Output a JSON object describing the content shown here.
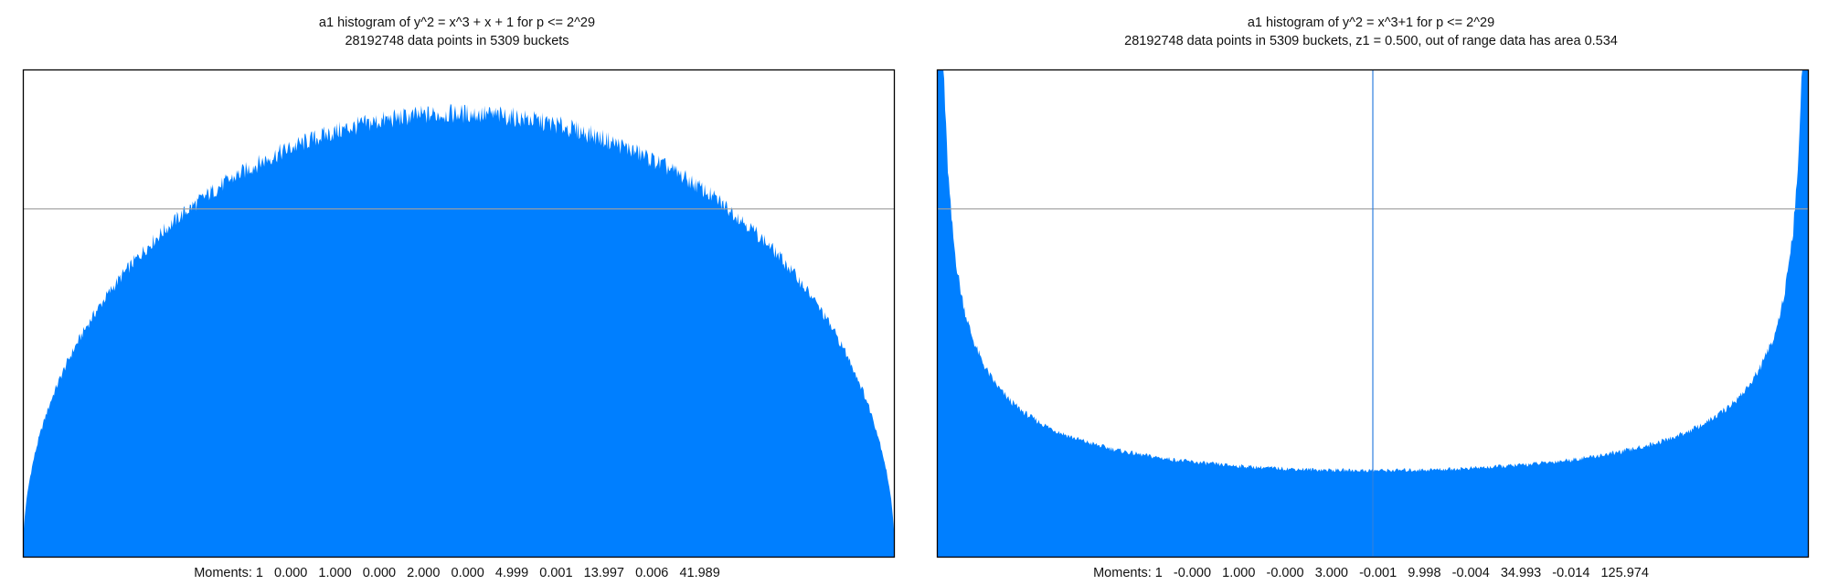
{
  "colors": {
    "fill": "#007fff",
    "refline": "#a0a0a0",
    "marker": "#2f80e0",
    "frame": "#000000"
  },
  "chart_data": [
    {
      "type": "area",
      "title": "a1 histogram of y^2 = x^3 + x + 1 for p <= 2^29",
      "subtitle": "28192748 data points in 5309 buckets",
      "moments_text": "Moments: 1   0.000   1.000   0.000   2.000   0.000   4.999   0.001   13.997   0.006   41.989",
      "distribution": "semicircle",
      "xlim": [
        -2,
        2
      ],
      "ylim": [
        0,
        0.35
      ],
      "reference_line_y": 0.25,
      "x": [
        -2,
        -1.9,
        -1.8,
        -1.6,
        -1.4,
        -1.2,
        -1.0,
        -0.8,
        -0.6,
        -0.4,
        -0.2,
        0,
        0.2,
        0.4,
        0.6,
        0.8,
        1.0,
        1.2,
        1.4,
        1.6,
        1.8,
        1.9,
        2
      ],
      "y": [
        0,
        0.099,
        0.139,
        0.191,
        0.227,
        0.254,
        0.276,
        0.292,
        0.303,
        0.311,
        0.317,
        0.318,
        0.317,
        0.311,
        0.303,
        0.292,
        0.276,
        0.254,
        0.227,
        0.191,
        0.139,
        0.099,
        0
      ]
    },
    {
      "type": "area",
      "title": "a1 histogram of y^2 = x^3+1 for p <= 2^29",
      "subtitle": "28192748 data points in 5309 buckets, z1 = 0.500, out of range data has area 0.534",
      "moments_text": "Moments: 1   -0.000   1.000   -0.000   3.000   -0.001   9.998   -0.004   34.993   -0.014   125.974",
      "distribution": "arcsine",
      "xlim": [
        -2,
        2
      ],
      "ylim": [
        0,
        0.35
      ],
      "reference_line_y": 0.25,
      "marker_x": 0,
      "x": [
        -1.99,
        -1.95,
        -1.9,
        -1.8,
        -1.6,
        -1.4,
        -1.2,
        -1.0,
        -0.8,
        -0.6,
        -0.4,
        -0.2,
        0,
        0.2,
        0.4,
        0.6,
        0.8,
        1.0,
        1.2,
        1.4,
        1.6,
        1.8,
        1.9,
        1.95,
        1.99
      ],
      "y": [
        0.36,
        0.25,
        0.197,
        0.146,
        0.106,
        0.089,
        0.08,
        0.074,
        0.069,
        0.066,
        0.064,
        0.0625,
        0.0625,
        0.0625,
        0.064,
        0.066,
        0.069,
        0.074,
        0.08,
        0.089,
        0.106,
        0.146,
        0.197,
        0.25,
        0.36
      ]
    }
  ]
}
